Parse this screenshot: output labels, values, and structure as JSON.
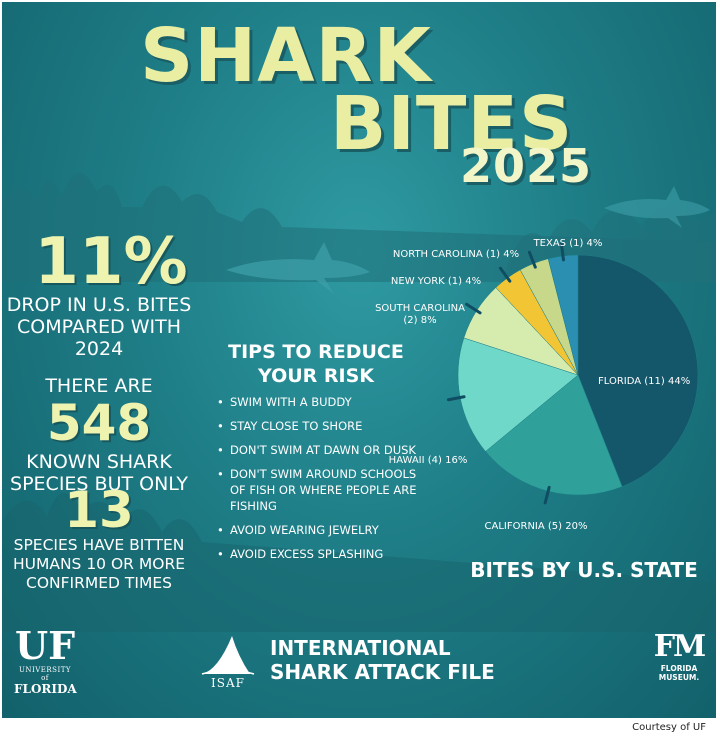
{
  "header": {
    "line1": "SHARK",
    "line2": "BITES",
    "year": "2025"
  },
  "stats": {
    "drop_pct": "11%",
    "drop_text": "DROP IN U.S. BITES COMPARED WITH 2024",
    "there_are": "THERE ARE",
    "species_count": "548",
    "species_text": "KNOWN SHARK SPECIES BUT ONLY",
    "bitten_count": "13",
    "bitten_text": "SPECIES HAVE BITTEN HUMANS 10 OR MORE CONFIRMED TIMES"
  },
  "tips": {
    "title": "TIPS TO REDUCE YOUR RISK",
    "items": [
      "SWIM WITH A BUDDY",
      "STAY CLOSE TO SHORE",
      "DON'T SWIM AT DAWN OR DUSK",
      "DON'T SWIM AROUND SCHOOLS OF FISH OR WHERE PEOPLE ARE FISHING",
      "AVOID WEARING JEWELRY",
      "AVOID EXCESS SPLASHING"
    ]
  },
  "chart_data": {
    "type": "pie",
    "title": "BITES BY U.S. STATE",
    "slices": [
      {
        "label": "FLORIDA (11) 44%",
        "state": "FLORIDA",
        "count": 11,
        "percent": 44,
        "color": "#14566a"
      },
      {
        "label": "CALIFORNIA (5) 20%",
        "state": "CALIFORNIA",
        "count": 5,
        "percent": 20,
        "color": "#2fa09a"
      },
      {
        "label": "HAWAII (4) 16%",
        "state": "HAWAII",
        "count": 4,
        "percent": 16,
        "color": "#6fd8c8"
      },
      {
        "label": "SOUTH CAROLINA (2) 8%",
        "state": "SOUTH CAROLINA",
        "count": 2,
        "percent": 8,
        "color": "#d6ecae"
      },
      {
        "label": "NEW YORK (1) 4%",
        "state": "NEW YORK",
        "count": 1,
        "percent": 4,
        "color": "#f2c535"
      },
      {
        "label": "NORTH CAROLINA (1) 4%",
        "state": "NORTH CAROLINA",
        "count": 1,
        "percent": 4,
        "color": "#c8d88a"
      },
      {
        "label": "TEXAS (1) 4%",
        "state": "TEXAS",
        "count": 1,
        "percent": 4,
        "color": "#2a8fb0"
      }
    ]
  },
  "footer": {
    "uf_mark": "UF",
    "uf_sub": "UNIVERSITY of",
    "uf_name": "FLORIDA",
    "isaf_abbr": "ISAF",
    "isaf_name_line1": "INTERNATIONAL",
    "isaf_name_line2": "SHARK ATTACK FILE",
    "fm_mark": "FM",
    "fm_name_line1": "FLORIDA",
    "fm_name_line2": "MUSEUM."
  },
  "credit": "Courtesy of UF"
}
